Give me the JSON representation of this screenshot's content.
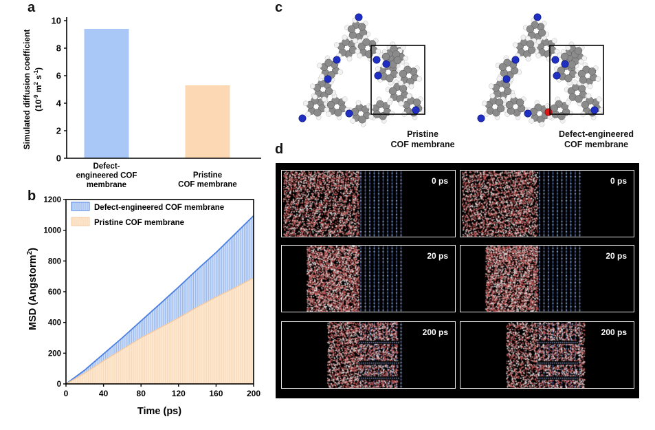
{
  "panels": {
    "a": "a",
    "b": "b",
    "c": "c",
    "d": "d"
  },
  "chart_data": [
    {
      "type": "bar",
      "categories": [
        "Defect-engineered COF membrane",
        "Pristine COF membrane"
      ],
      "category_lines": [
        [
          "Defect-",
          "engineered COF",
          "membrane"
        ],
        [
          "Pristine",
          "COF membrane"
        ]
      ],
      "values": [
        9.4,
        5.3
      ],
      "colors": [
        "#a9c8f7",
        "#fcd9b4"
      ],
      "ylabel_line1": "Simulated diffusion coefficient",
      "ylabel_line2_prefix": "(10",
      "ylabel_line2_exp": "-9",
      "ylabel_line2_unit": " m",
      "ylabel_line2_exp2": "2",
      "ylabel_line2_s": " s",
      "ylabel_line2_exp3": "-1",
      "ylabel_line2_close": ")",
      "ylim": [
        0,
        10
      ],
      "yticks": [
        "0",
        "2",
        "4",
        "6",
        "8",
        "10"
      ]
    },
    {
      "type": "area",
      "xlabel": "Time (ps)",
      "ylabel_main": "MSD (Angstorm",
      "ylabel_exp": "2",
      "ylabel_close": ")",
      "xlim": [
        0,
        200
      ],
      "ylim": [
        0,
        1200
      ],
      "xticks": [
        "0",
        "40",
        "80",
        "120",
        "160",
        "200"
      ],
      "yticks": [
        "0",
        "200",
        "400",
        "600",
        "800",
        "1000",
        "1200"
      ],
      "legend_position": "top-left",
      "series": [
        {
          "name": "Defect-engineered COF membrane",
          "color": "#4a7fe0",
          "fill": "#c9dbf7",
          "x": [
            0,
            20,
            40,
            60,
            80,
            100,
            120,
            140,
            160,
            180,
            200
          ],
          "y": [
            0,
            90,
            195,
            300,
            410,
            520,
            630,
            745,
            855,
            975,
            1095
          ]
        },
        {
          "name": "Pristine COF membrane",
          "color": "#f5c9a0",
          "fill": "#fde7cf",
          "x": [
            0,
            20,
            40,
            60,
            80,
            100,
            120,
            140,
            160,
            180,
            200
          ],
          "y": [
            0,
            70,
            150,
            225,
            300,
            365,
            430,
            500,
            565,
            625,
            690
          ]
        }
      ]
    }
  ],
  "structures": {
    "pristine_caption": [
      "Pristine",
      "COF membrane"
    ],
    "defect_caption": [
      "Defect-engineered",
      "COF membrane"
    ]
  },
  "snapshots": {
    "times": [
      "0 ps",
      "20 ps",
      "200 ps"
    ]
  }
}
